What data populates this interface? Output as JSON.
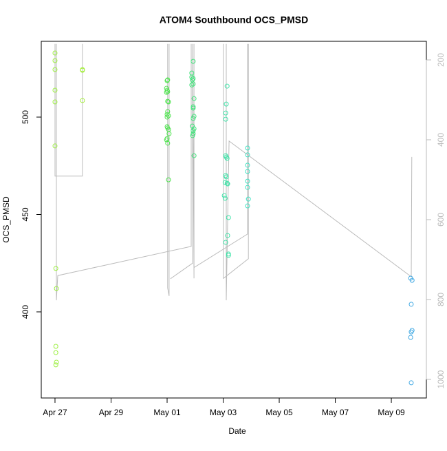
{
  "chart_data": {
    "type": "scatter",
    "title": "ATOM4 Southbound OCS_PMSD",
    "x_label": "Date",
    "y_label": "OCS_PMSD",
    "xlim": [
      -0.49,
      13.25
    ],
    "xticks": [
      {
        "value": 0,
        "label": "Apr 27"
      },
      {
        "value": 2,
        "label": "Apr 29"
      },
      {
        "value": 4,
        "label": "May 01"
      },
      {
        "value": 6,
        "label": "May 03"
      },
      {
        "value": 8,
        "label": "May 05"
      },
      {
        "value": 10,
        "label": "May 07"
      },
      {
        "value": 12,
        "label": "May 09"
      }
    ],
    "ylim": [
      355.8,
      538.9
    ],
    "yticks": [
      400,
      450,
      500
    ],
    "y2lim": [
      1046.6,
      153.4
    ],
    "y2ticks": [
      200,
      400,
      600,
      800,
      1000
    ],
    "series": [
      {
        "color": "#9bef3f",
        "x": [
          0.0,
          0.0,
          0.0,
          0.0,
          0.0,
          0.0,
          0.03,
          0.05,
          0.03,
          0.03,
          0.05,
          0.03
        ],
        "values": [
          532.9,
          529.0,
          524.4,
          513.8,
          507.8,
          485.2,
          422.3,
          412.0,
          382.3,
          379.1,
          374.2,
          372.8
        ]
      },
      {
        "color": "#a6ef3f",
        "x": [
          0.98,
          0.98,
          0.98
        ],
        "values": [
          524.4,
          524.0,
          508.5
        ]
      },
      {
        "color": "#4fe34f",
        "x": [
          4.02,
          4.0,
          3.98,
          4.0,
          4.02,
          3.98,
          4.02,
          4.05,
          4.02,
          4.0,
          4.05,
          4.0,
          4.0,
          4.02,
          4.05,
          4.07,
          4.0,
          3.98,
          4.02,
          4.05
        ],
        "values": [
          519.1,
          518.7,
          514.8,
          513.8,
          513.1,
          512.7,
          508.1,
          507.8,
          502.8,
          501.4,
          500.7,
          500.0,
          495.1,
          494.4,
          493.6,
          491.5,
          489.0,
          488.3,
          486.6,
          467.8
        ]
      },
      {
        "color": "#3fe37a",
        "x": [
          4.93,
          4.88,
          4.88,
          4.93,
          4.9,
          4.93,
          4.88,
          4.96,
          4.93,
          4.93,
          4.96,
          4.93,
          4.9,
          4.96,
          4.93,
          4.93,
          4.91,
          4.96
        ],
        "values": [
          528.6,
          522.6,
          520.5,
          519.8,
          519.1,
          517.0,
          516.5,
          509.5,
          505.3,
          504.6,
          500.4,
          499.3,
          495.4,
          494.0,
          493.0,
          491.5,
          490.5,
          480.2
        ]
      },
      {
        "color": "#3fe3a8",
        "x": [
          6.14,
          6.11,
          6.09,
          6.09,
          6.09,
          6.11,
          6.14,
          6.09,
          6.11,
          6.07,
          6.14,
          6.16,
          6.04,
          6.07,
          6.19,
          6.16,
          6.09,
          6.19,
          6.19
        ],
        "values": [
          515.9,
          506.7,
          502.1,
          498.9,
          480.2,
          479.5,
          478.8,
          470.0,
          469.3,
          466.4,
          466.1,
          465.7,
          459.7,
          458.3,
          448.4,
          439.2,
          435.7,
          429.7,
          429.0
        ]
      },
      {
        "color": "#3fe3c3",
        "x": [
          6.87,
          6.87,
          6.87,
          6.87,
          6.87,
          6.87,
          6.9,
          6.87
        ],
        "values": [
          484.1,
          480.6,
          475.3,
          472.1,
          467.1,
          463.9,
          457.9,
          454.4
        ]
      },
      {
        "color": "#3fa8e3",
        "x": [
          12.69,
          12.74,
          12.71,
          12.74,
          12.71,
          12.69,
          12.71
        ],
        "values": [
          417.3,
          416.2,
          403.9,
          390.5,
          389.7,
          386.9,
          363.6
        ]
      }
    ],
    "line": {
      "axis": "y2",
      "color": "#bbbbbb",
      "x": [
        0,
        0,
        0.98,
        0.98,
        null,
        0.05,
        0.05,
        0.1,
        4.86,
        4.86,
        null,
        4.02,
        4.02,
        4.07,
        4.07,
        null,
        4.12,
        4.91,
        4.91,
        4.96,
        4.96,
        null,
        4.96,
        6.87,
        6.87,
        null,
        6.01,
        6.01,
        6.9,
        6.9,
        null,
        6.11,
        6.11,
        6.21,
        12.71,
        12.73
      ],
      "values": [
        160,
        491,
        491,
        160,
        null,
        160,
        802,
        740,
        667,
        160,
        null,
        160,
        771,
        791,
        160,
        null,
        748,
        709,
        160,
        747,
        160,
        null,
        720,
        636,
        160,
        null,
        160,
        747,
        698,
        160,
        null,
        160,
        802,
        403,
        743,
        443
      ]
    }
  }
}
